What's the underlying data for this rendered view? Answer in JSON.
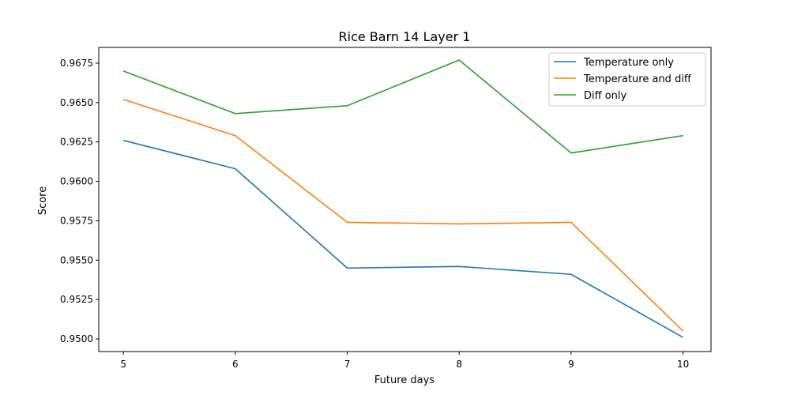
{
  "chart_data": {
    "type": "line",
    "title": "Rice Barn 14 Layer 1",
    "xlabel": "Future days",
    "ylabel": "Score",
    "x": [
      5,
      6,
      7,
      8,
      9,
      10
    ],
    "xticks": [
      "5",
      "6",
      "7",
      "8",
      "9",
      "10"
    ],
    "xlim": [
      4.78,
      10.25
    ],
    "yticks": [
      "0.9500",
      "0.9525",
      "0.9550",
      "0.9575",
      "0.9600",
      "0.9625",
      "0.9650",
      "0.9675"
    ],
    "ytick_values": [
      0.95,
      0.9525,
      0.955,
      0.9575,
      0.96,
      0.9625,
      0.965,
      0.9675
    ],
    "ylim": [
      0.9492,
      0.9685
    ],
    "grid": false,
    "legend_position": "top-right",
    "series": [
      {
        "name": "Temperature only",
        "color": "#1f77b4",
        "values": [
          0.9626,
          0.9608,
          0.9545,
          0.9546,
          0.9541,
          0.9501
        ]
      },
      {
        "name": "Temperature and diff",
        "color": "#ff7f0e",
        "values": [
          0.9652,
          0.9629,
          0.9574,
          0.9573,
          0.9574,
          0.9505
        ]
      },
      {
        "name": "Diff only",
        "color": "#2ca02c",
        "values": [
          0.967,
          0.9643,
          0.9648,
          0.9677,
          0.9618,
          0.9629
        ]
      }
    ]
  }
}
